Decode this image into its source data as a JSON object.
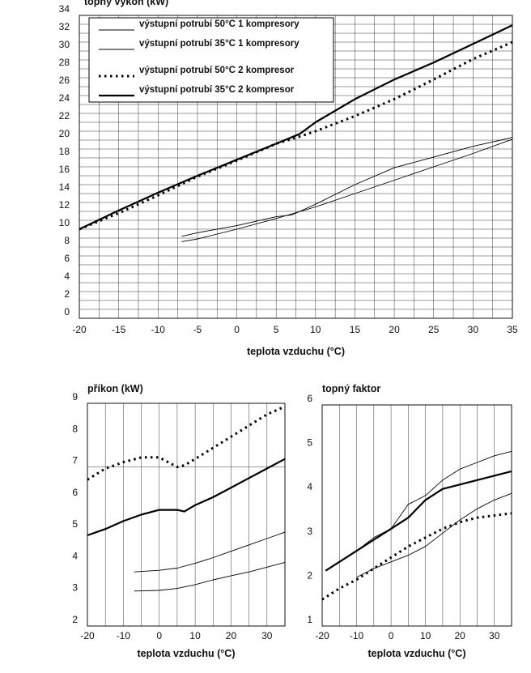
{
  "chart_data": [
    {
      "type": "line",
      "x_tick_labels": [
        "-20",
        "-10",
        "0",
        "10",
        "20",
        "30"
      ],
      "y_tick_labels": [
        "2",
        "3",
        "4",
        "5",
        "6",
        "7",
        "8",
        "9"
      ],
      "xlabel": "teplota vzduchu (°C)",
      "ylabel": "příkon (kW)",
      "xlim": [
        -20,
        35
      ],
      "ylim": [
        2,
        9
      ],
      "grid": true,
      "series": [
        {
          "style": "thin",
          "x": [
            -7,
            0,
            5,
            10,
            15,
            20,
            25,
            30,
            35
          ],
          "y": [
            3.1,
            3.12,
            3.18,
            3.3,
            3.45,
            3.58,
            3.7,
            3.85,
            4.0
          ]
        },
        {
          "style": "thin",
          "x": [
            -7,
            0,
            5,
            10,
            15,
            20,
            25,
            30,
            35
          ],
          "y": [
            3.7,
            3.75,
            3.82,
            3.97,
            4.15,
            4.35,
            4.55,
            4.75,
            4.95
          ]
        },
        {
          "style": "bold",
          "x": [
            -20,
            -15,
            -10,
            -5,
            0,
            5,
            7,
            10,
            15,
            20,
            25,
            30,
            35
          ],
          "y": [
            4.85,
            5.05,
            5.3,
            5.5,
            5.65,
            5.65,
            5.6,
            5.8,
            6.05,
            6.35,
            6.65,
            6.95,
            7.25
          ]
        },
        {
          "style": "dotted",
          "x": [
            -20,
            -15,
            -10,
            -5,
            0,
            5,
            7,
            10,
            15,
            20,
            25,
            30,
            35
          ],
          "y": [
            6.6,
            6.95,
            7.15,
            7.3,
            7.3,
            7.0,
            7.05,
            7.25,
            7.6,
            7.95,
            8.3,
            8.65,
            8.9
          ]
        }
      ]
    },
    {
      "type": "line",
      "x_tick_labels": [
        "-20",
        "-10",
        "0",
        "10",
        "20",
        "30"
      ],
      "y_tick_labels": [
        "1",
        "2",
        "3",
        "4",
        "5",
        "6"
      ],
      "xlabel": "teplota vzduchu (°C)",
      "ylabel": "topný faktor",
      "xlim": [
        -20,
        35
      ],
      "ylim": [
        1,
        6
      ],
      "grid": true,
      "series": [
        {
          "style": "dotted",
          "x": [
            -20,
            -15,
            -10,
            -5,
            0,
            5,
            10,
            15,
            20,
            25,
            30,
            35
          ],
          "y": [
            1.6,
            1.85,
            2.05,
            2.3,
            2.55,
            2.8,
            3.0,
            3.2,
            3.35,
            3.45,
            3.5,
            3.55
          ]
        },
        {
          "style": "thin",
          "x": [
            -19,
            -15,
            -10,
            -5,
            0,
            5,
            10,
            15,
            20,
            25,
            30,
            35
          ],
          "y": [
            2.25,
            2.45,
            2.7,
            3.0,
            3.2,
            3.75,
            3.95,
            4.3,
            4.55,
            4.7,
            4.85,
            4.95
          ]
        },
        {
          "style": "bold",
          "x": [
            -19,
            -15,
            -10,
            -5,
            0,
            5,
            10,
            15,
            20,
            25,
            30,
            35
          ],
          "y": [
            2.25,
            2.45,
            2.7,
            2.95,
            3.2,
            3.45,
            3.85,
            4.1,
            4.2,
            4.3,
            4.4,
            4.5
          ]
        },
        {
          "style": "thin",
          "x": [
            -10,
            -5,
            0,
            5,
            10,
            15,
            20,
            25,
            30,
            35
          ],
          "y": [
            2.1,
            2.3,
            2.45,
            2.6,
            2.8,
            3.1,
            3.4,
            3.65,
            3.85,
            4.0
          ]
        }
      ]
    },
    {
      "type": "line",
      "x_tick_labels": [
        "-20",
        "-15",
        "-10",
        "-5",
        "0",
        "5",
        "10",
        "15",
        "20",
        "25",
        "30",
        "35"
      ],
      "y_tick_labels": [
        "0",
        "2",
        "4",
        "6",
        "8",
        "10",
        "12",
        "14",
        "16",
        "18",
        "20",
        "22",
        "24",
        "26",
        "28",
        "30",
        "32",
        "34"
      ],
      "xlabel": "teplota vzduchu (°C)",
      "ylabel": "topný výkon (kW)",
      "xlim": [
        -20,
        35
      ],
      "ylim": [
        0,
        34
      ],
      "grid": true,
      "legend_position": "bottom-left",
      "series": [
        {
          "name": "výstupní potrubí 50°C 1 kompresory",
          "style": "thin",
          "x": [
            -7,
            -5,
            0,
            5,
            10,
            15,
            20,
            25,
            30,
            35
          ],
          "y": [
            8.6,
            8.9,
            10.0,
            11.2,
            12.5,
            14.0,
            15.5,
            17.0,
            18.5,
            20.1
          ]
        },
        {
          "name": "výstupní potrubí 35°C 1 kompresory",
          "style": "thin",
          "x": [
            -7,
            -5,
            0,
            5,
            7,
            10,
            15,
            20,
            25,
            30,
            35
          ],
          "y": [
            9.2,
            9.6,
            10.4,
            11.4,
            11.6,
            12.8,
            15.0,
            16.9,
            18.1,
            19.3,
            20.3
          ]
        },
        {
          "name": "výstupní potrubí 50°C 2 kompresor",
          "style": "dotted",
          "x": [
            -20,
            -15,
            -10,
            -5,
            0,
            5,
            8,
            10,
            15,
            20,
            25,
            30,
            35
          ],
          "y": [
            10.0,
            11.8,
            13.8,
            15.9,
            17.7,
            19.6,
            20.4,
            21.0,
            22.7,
            24.6,
            26.8,
            29.1,
            31.0
          ]
        },
        {
          "name": "výstupní potrubí 35°C 2 kompresor",
          "style": "bold",
          "x": [
            -20,
            -15,
            -10,
            -5,
            0,
            5,
            8,
            10,
            15,
            20,
            25,
            30,
            35
          ],
          "y": [
            10.0,
            12.1,
            14.1,
            16.0,
            17.8,
            19.6,
            20.7,
            22.0,
            24.6,
            26.8,
            28.7,
            30.8,
            32.9
          ]
        }
      ]
    }
  ]
}
